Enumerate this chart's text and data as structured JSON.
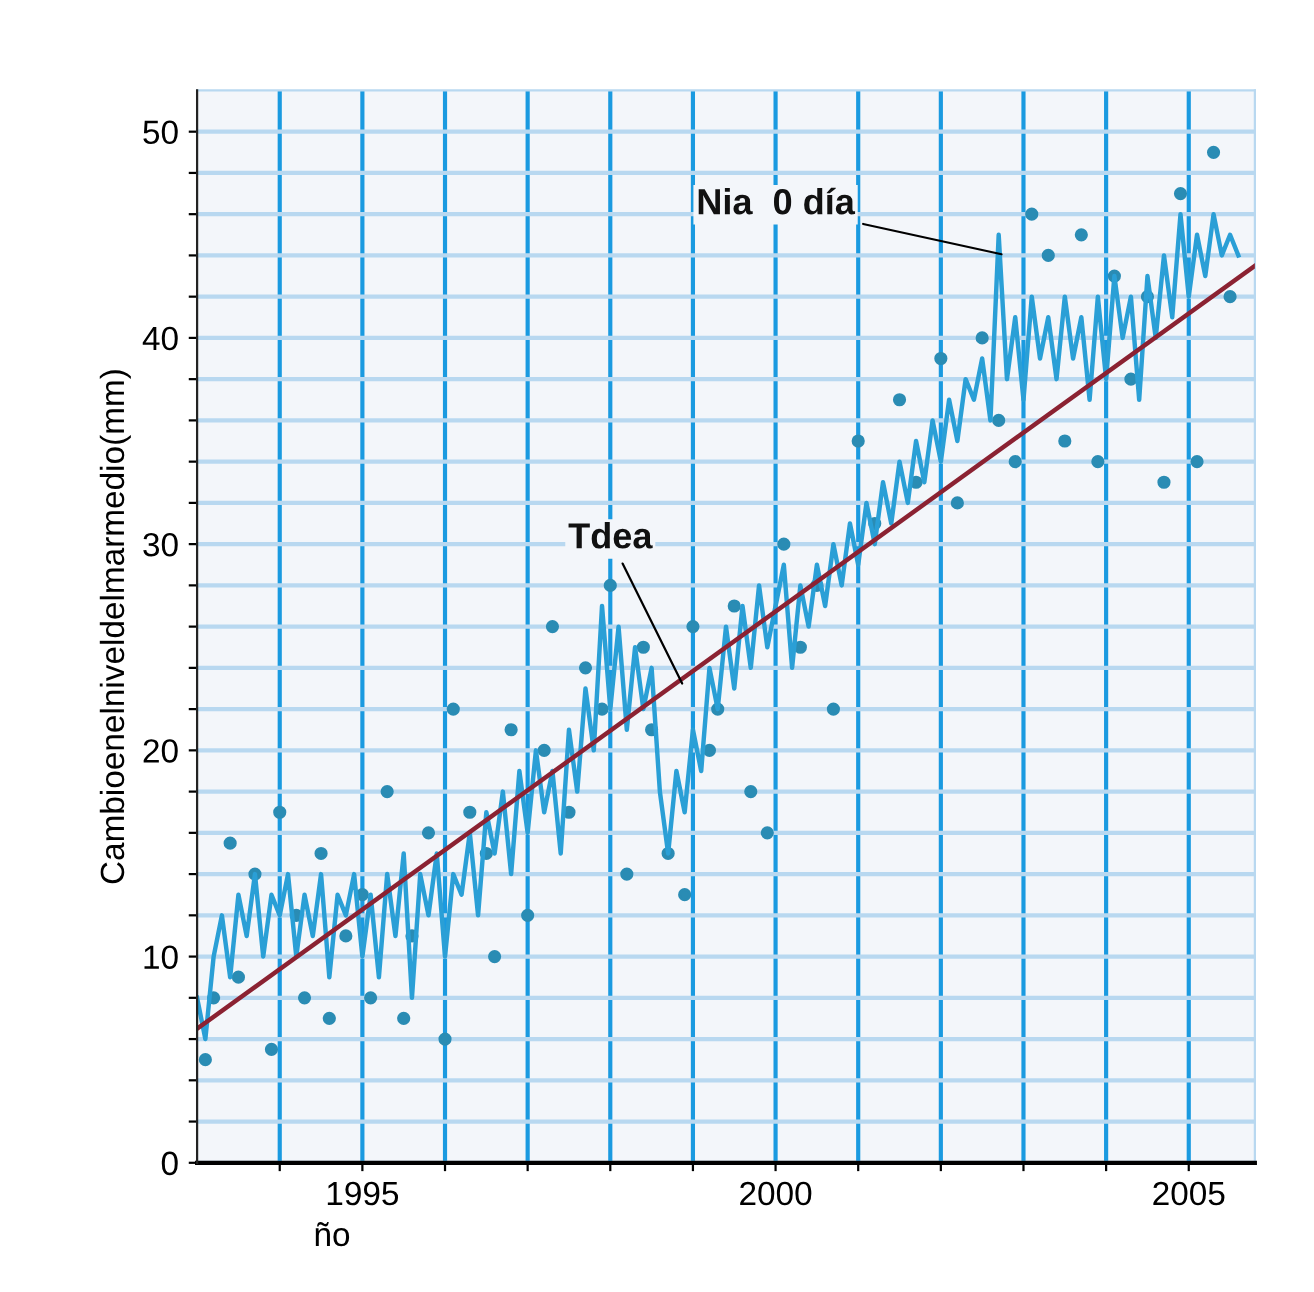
{
  "chart_data": {
    "type": "line",
    "ylabel": "Cambioenelniveldelmarmedio(mm)",
    "xlabel": "ño",
    "xlim": [
      1993,
      2005.8
    ],
    "ylim": [
      0,
      52
    ],
    "xticks": [
      {
        "value": 1994,
        "label": null
      },
      1995,
      {
        "value": 1996,
        "label": null
      },
      {
        "value": 1997,
        "label": null
      },
      {
        "value": 1998,
        "label": null
      },
      {
        "value": 1999,
        "label": null
      },
      2000,
      {
        "value": 2001,
        "label": null
      },
      {
        "value": 2002,
        "label": null
      },
      {
        "value": 2003,
        "label": null
      },
      {
        "value": 2004,
        "label": null
      },
      2005
    ],
    "yticks": [
      0,
      {
        "value": 2,
        "label": null
      },
      {
        "value": 4,
        "label": null
      },
      {
        "value": 6,
        "label": null
      },
      {
        "value": 8,
        "label": null
      },
      10,
      {
        "value": 12,
        "label": null
      },
      {
        "value": 14,
        "label": null
      },
      {
        "value": 16,
        "label": null
      },
      {
        "value": 18,
        "label": null
      },
      20,
      {
        "value": 22,
        "label": null
      },
      {
        "value": 24,
        "label": null
      },
      {
        "value": 26,
        "label": null
      },
      {
        "value": 28,
        "label": null
      },
      30,
      {
        "value": 32,
        "label": null
      },
      {
        "value": 34,
        "label": null
      },
      {
        "value": 36,
        "label": null
      },
      {
        "value": 38,
        "label": null
      },
      40,
      {
        "value": 42,
        "label": null
      },
      {
        "value": 44,
        "label": null
      },
      {
        "value": 46,
        "label": null
      },
      {
        "value": 48,
        "label": null
      },
      50
    ],
    "grid": true,
    "annotations": [
      {
        "text": "Tdea",
        "x": 1998.9,
        "y": 23
      },
      {
        "text": "Nia  0 día",
        "x": 2002.8,
        "y": 44
      }
    ],
    "series": [
      {
        "type": "scatter",
        "color": "#2a8cb4",
        "x": [
          1993.1,
          1993.2,
          1993.4,
          1993.5,
          1993.7,
          1993.9,
          1994.0,
          1994.2,
          1994.3,
          1994.5,
          1994.6,
          1994.8,
          1995.0,
          1995.1,
          1995.3,
          1995.5,
          1995.6,
          1995.8,
          1996.0,
          1996.1,
          1996.3,
          1996.5,
          1996.6,
          1996.8,
          1997.0,
          1997.2,
          1997.3,
          1997.5,
          1997.7,
          1997.9,
          1998.0,
          1998.2,
          1998.4,
          1998.5,
          1998.7,
          1998.9,
          1999.0,
          1999.2,
          1999.3,
          1999.5,
          1999.7,
          1999.9,
          2000.1,
          2000.3,
          2000.5,
          2000.7,
          2001.0,
          2001.2,
          2001.5,
          2001.7,
          2002.0,
          2002.2,
          2002.5,
          2002.7,
          2002.9,
          2003.1,
          2003.3,
          2003.5,
          2003.7,
          2003.9,
          2004.1,
          2004.3,
          2004.5,
          2004.7,
          2004.9,
          2005.1,
          2005.3,
          2005.5
        ],
        "values": [
          5,
          8,
          15.5,
          9,
          14,
          5.5,
          17,
          12,
          8,
          15,
          7,
          11,
          13,
          8,
          18,
          7,
          11,
          16,
          6,
          22,
          17,
          15,
          10,
          21,
          12,
          20,
          26,
          17,
          24,
          22,
          28,
          14,
          25,
          21,
          15,
          13,
          26,
          20,
          22,
          27,
          18,
          16,
          30,
          25,
          28,
          22,
          35,
          31,
          37,
          33,
          39,
          32,
          40,
          36,
          34,
          46,
          44,
          35,
          45,
          34,
          43,
          38,
          42,
          33,
          47,
          34,
          49,
          42
        ]
      },
      {
        "color": "#2a9fd6",
        "x": [
          1993.0,
          1993.1,
          1993.2,
          1993.3,
          1993.4,
          1993.5,
          1993.6,
          1993.7,
          1993.8,
          1993.9,
          1994.0,
          1994.1,
          1994.2,
          1994.3,
          1994.4,
          1994.5,
          1994.6,
          1994.7,
          1994.8,
          1994.9,
          1995.0,
          1995.1,
          1995.2,
          1995.3,
          1995.4,
          1995.5,
          1995.6,
          1995.7,
          1995.8,
          1995.9,
          1996.0,
          1996.1,
          1996.2,
          1996.3,
          1996.4,
          1996.5,
          1996.6,
          1996.7,
          1996.8,
          1996.9,
          1997.0,
          1997.1,
          1997.2,
          1997.3,
          1997.4,
          1997.5,
          1997.6,
          1997.7,
          1997.8,
          1997.9,
          1998.0,
          1998.1,
          1998.2,
          1998.3,
          1998.4,
          1998.5,
          1998.6,
          1998.7,
          1998.8,
          1998.9,
          1999.0,
          1999.1,
          1999.2,
          1999.3,
          1999.4,
          1999.5,
          1999.6,
          1999.7,
          1999.8,
          1999.9,
          2000.0,
          2000.1,
          2000.2,
          2000.3,
          2000.4,
          2000.5,
          2000.6,
          2000.7,
          2000.8,
          2000.9,
          2001.0,
          2001.1,
          2001.2,
          2001.3,
          2001.4,
          2001.5,
          2001.6,
          2001.7,
          2001.8,
          2001.9,
          2002.0,
          2002.1,
          2002.2,
          2002.3,
          2002.4,
          2002.5,
          2002.6,
          2002.7,
          2002.8,
          2002.9,
          2003.0,
          2003.1,
          2003.2,
          2003.3,
          2003.4,
          2003.5,
          2003.6,
          2003.7,
          2003.8,
          2003.9,
          2004.0,
          2004.1,
          2004.2,
          2004.3,
          2004.4,
          2004.5,
          2004.6,
          2004.7,
          2004.8,
          2004.9,
          2005.0,
          2005.1,
          2005.2,
          2005.3,
          2005.4,
          2005.5,
          2005.6
        ],
        "values": [
          8,
          6,
          10,
          12,
          9,
          13,
          11,
          14,
          10,
          13,
          12,
          14,
          10,
          13,
          11,
          14,
          9,
          13,
          12,
          14,
          10,
          13,
          9,
          14,
          11,
          15,
          8,
          14,
          12,
          15,
          10,
          14,
          13,
          16,
          12,
          17,
          15,
          18,
          14,
          19,
          16,
          20,
          17,
          19,
          15,
          21,
          18,
          23,
          20,
          27,
          22,
          26,
          21,
          25,
          22,
          24,
          18,
          15,
          19,
          17,
          21,
          19,
          24,
          22,
          26,
          23,
          27,
          24,
          28,
          25,
          27,
          29,
          24,
          28,
          26,
          29,
          27,
          30,
          28,
          31,
          29,
          32,
          30,
          33,
          31,
          34,
          32,
          35,
          33,
          36,
          34,
          37,
          35,
          38,
          37,
          39,
          36,
          45,
          38,
          41,
          37,
          42,
          39,
          41,
          38,
          42,
          39,
          41,
          37,
          42,
          38,
          43,
          40,
          42,
          37,
          43,
          40,
          44,
          41,
          46,
          42,
          45,
          43,
          46,
          44,
          45,
          44
        ]
      },
      {
        "color": "#8b2232",
        "x": [
          1993.0,
          2005.8
        ],
        "values": [
          6.5,
          43.5
        ]
      }
    ]
  }
}
